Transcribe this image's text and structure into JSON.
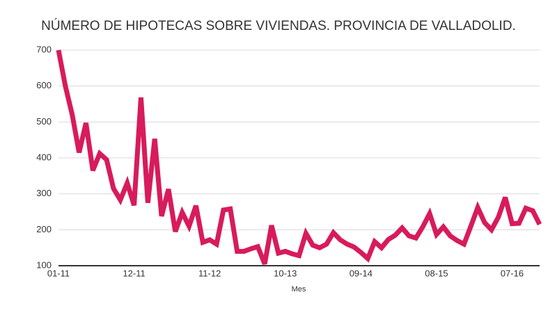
{
  "chart_data": {
    "type": "line",
    "title": "NÚMERO DE HIPOTECAS SOBRE VIVIENDAS. PROVINCIA DE VALLADOLID.",
    "x_label": "Mes",
    "categories": [
      "01-11",
      null,
      null,
      null,
      null,
      null,
      null,
      null,
      null,
      null,
      null,
      "12-11",
      null,
      null,
      null,
      null,
      null,
      null,
      null,
      null,
      null,
      null,
      "11-12",
      null,
      null,
      null,
      null,
      null,
      null,
      null,
      null,
      null,
      null,
      "10-13",
      null,
      null,
      null,
      null,
      null,
      null,
      null,
      null,
      null,
      null,
      "09-14",
      null,
      null,
      null,
      null,
      null,
      null,
      null,
      null,
      null,
      null,
      "08-15",
      null,
      null,
      null,
      null,
      null,
      null,
      null,
      null,
      null,
      null,
      "07-16",
      null,
      null,
      null,
      null
    ],
    "series": [
      {
        "color": "#d81b5a",
        "values": [
          700,
          600,
          520,
          415,
          497,
          365,
          412,
          395,
          315,
          283,
          330,
          268,
          568,
          275,
          453,
          238,
          313,
          195,
          248,
          210,
          267,
          165,
          172,
          160,
          255,
          258,
          140,
          140,
          147,
          153,
          105,
          212,
          135,
          140,
          133,
          128,
          190,
          157,
          150,
          160,
          192,
          172,
          160,
          152,
          137,
          120,
          167,
          150,
          173,
          185,
          205,
          183,
          177,
          208,
          245,
          187,
          208,
          183,
          170,
          160,
          210,
          262,
          220,
          200,
          235,
          290,
          217,
          218,
          260,
          253,
          215
        ]
      }
    ],
    "ylim": [
      100,
      700
    ],
    "yticks": [
      100,
      200,
      300,
      400,
      500,
      600,
      700
    ],
    "grid": true
  }
}
